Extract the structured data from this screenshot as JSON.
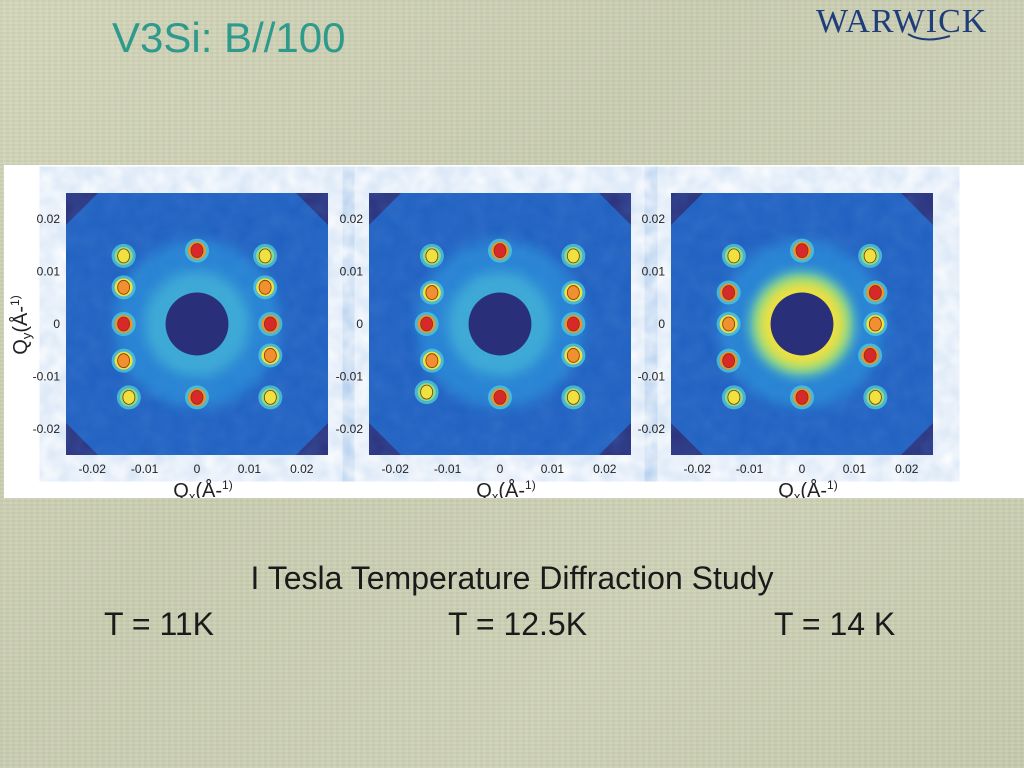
{
  "slide": {
    "title": "V3Si: B//100",
    "logo_text": "WARWICK",
    "caption": "I Tesla Temperature Diffraction Study",
    "temperatures": [
      "T = 11K",
      "T = 12.5K",
      "T = 14 K"
    ]
  },
  "figure": {
    "y_axis_label": "Qy(Å-1)",
    "x_axis_label": "Qx(Å-1)",
    "y_ticks": [
      "0.02",
      "0.01",
      "0",
      "-0.01",
      "-0.02"
    ],
    "x_ticks": [
      "-0.02",
      "-0.01",
      "0",
      "0.01",
      "0.02"
    ],
    "colormap": [
      "#2a2f7a",
      "#1f5fc0",
      "#2f9ae0",
      "#4fc8d8",
      "#8fdc80",
      "#f0e040",
      "#f09030",
      "#d8282a"
    ]
  },
  "chart_data": [
    {
      "type": "heatmap",
      "temperature": "T = 11K",
      "xlabel": "Qx(Å-1)",
      "ylabel": "Qy(Å-1)",
      "xlim": [
        -0.025,
        0.025
      ],
      "ylim": [
        -0.025,
        0.025
      ],
      "peaks": [
        {
          "x": 0.0,
          "y": 0.014,
          "level": "red"
        },
        {
          "x": 0.0,
          "y": -0.014,
          "level": "red"
        },
        {
          "x": -0.014,
          "y": 0.0,
          "level": "red"
        },
        {
          "x": 0.014,
          "y": 0.0,
          "level": "red"
        },
        {
          "x": -0.014,
          "y": 0.007,
          "level": "orange"
        },
        {
          "x": 0.013,
          "y": 0.007,
          "level": "orange"
        },
        {
          "x": -0.014,
          "y": -0.007,
          "level": "orange"
        },
        {
          "x": 0.014,
          "y": -0.006,
          "level": "orange"
        },
        {
          "x": -0.014,
          "y": 0.013,
          "level": "yellow"
        },
        {
          "x": 0.013,
          "y": 0.013,
          "level": "yellow"
        },
        {
          "x": -0.013,
          "y": -0.014,
          "level": "yellow"
        },
        {
          "x": 0.014,
          "y": -0.014,
          "level": "yellow"
        }
      ]
    },
    {
      "type": "heatmap",
      "temperature": "T = 12.5K",
      "xlabel": "Qx(Å-1)",
      "ylabel": "",
      "xlim": [
        -0.025,
        0.025
      ],
      "ylim": [
        -0.025,
        0.025
      ],
      "peaks": [
        {
          "x": 0.0,
          "y": 0.014,
          "level": "red"
        },
        {
          "x": 0.0,
          "y": -0.014,
          "level": "red"
        },
        {
          "x": -0.014,
          "y": 0.0,
          "level": "red"
        },
        {
          "x": 0.014,
          "y": 0.0,
          "level": "red"
        },
        {
          "x": -0.013,
          "y": 0.006,
          "level": "orange"
        },
        {
          "x": 0.014,
          "y": 0.006,
          "level": "orange"
        },
        {
          "x": -0.013,
          "y": -0.007,
          "level": "orange"
        },
        {
          "x": 0.014,
          "y": -0.006,
          "level": "orange"
        },
        {
          "x": -0.013,
          "y": 0.013,
          "level": "yellow"
        },
        {
          "x": 0.014,
          "y": 0.013,
          "level": "yellow"
        },
        {
          "x": -0.014,
          "y": -0.013,
          "level": "yellow"
        },
        {
          "x": 0.014,
          "y": -0.014,
          "level": "yellow"
        }
      ]
    },
    {
      "type": "heatmap",
      "temperature": "T = 14 K",
      "xlabel": "Qx(Å-1)",
      "ylabel": "",
      "xlim": [
        -0.025,
        0.025
      ],
      "ylim": [
        -0.025,
        0.025
      ],
      "ring": "bright yellow ring around center",
      "peaks": [
        {
          "x": 0.0,
          "y": 0.014,
          "level": "red"
        },
        {
          "x": 0.0,
          "y": -0.014,
          "level": "red"
        },
        {
          "x": -0.014,
          "y": 0.006,
          "level": "red"
        },
        {
          "x": 0.014,
          "y": 0.006,
          "level": "red"
        },
        {
          "x": -0.014,
          "y": -0.007,
          "level": "red"
        },
        {
          "x": 0.013,
          "y": -0.006,
          "level": "red"
        },
        {
          "x": -0.014,
          "y": 0.0,
          "level": "orange"
        },
        {
          "x": 0.014,
          "y": 0.0,
          "level": "orange"
        },
        {
          "x": -0.013,
          "y": 0.013,
          "level": "yellow"
        },
        {
          "x": 0.013,
          "y": 0.013,
          "level": "yellow"
        },
        {
          "x": -0.013,
          "y": -0.014,
          "level": "yellow"
        },
        {
          "x": 0.014,
          "y": -0.014,
          "level": "yellow"
        }
      ]
    }
  ]
}
